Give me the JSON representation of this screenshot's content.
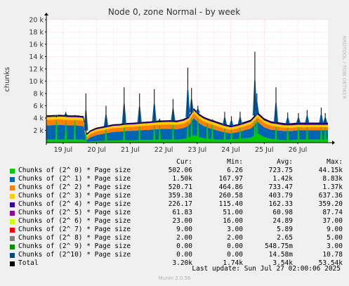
{
  "title": "Node 0, zone Normal - by week",
  "ylabel": "chunks",
  "watermark": "RRDTOOL / TOBI OETIKER",
  "footer": {
    "last_update": "Last update: Sun Jul 27 02:00:06 2025",
    "version": "Munin 2.0.56"
  },
  "legend_headers": {
    "cur": "Cur:",
    "min": "Min:",
    "avg": "Avg:",
    "max": "Max:"
  },
  "chart_data": {
    "type": "area",
    "stacked": true,
    "xlabel": "",
    "ylim": [
      0,
      20000
    ],
    "yticks": [
      {
        "value": 2000,
        "label": "2 k"
      },
      {
        "value": 4000,
        "label": "4 k"
      },
      {
        "value": 6000,
        "label": "6 k"
      },
      {
        "value": 8000,
        "label": "8 k"
      },
      {
        "value": 10000,
        "label": "10 k"
      },
      {
        "value": 12000,
        "label": "12 k"
      },
      {
        "value": 14000,
        "label": "14 k"
      },
      {
        "value": 16000,
        "label": "16 k"
      },
      {
        "value": 18000,
        "label": "18 k"
      },
      {
        "value": 20000,
        "label": "20 k"
      }
    ],
    "xrange_days": [
      0,
      8.4
    ],
    "xticks": [
      {
        "day": 0.5,
        "label": "19 Jul"
      },
      {
        "day": 1.5,
        "label": "20 Jul"
      },
      {
        "day": 2.5,
        "label": "21 Jul"
      },
      {
        "day": 3.5,
        "label": "22 Jul"
      },
      {
        "day": 4.5,
        "label": "23 Jul"
      },
      {
        "day": 5.5,
        "label": "24 Jul"
      },
      {
        "day": 6.5,
        "label": "25 Jul"
      },
      {
        "day": 7.5,
        "label": "26 Jul"
      }
    ],
    "grid": true,
    "series": [
      {
        "name": "Chunks of (2^ 0) * Page size",
        "color": "#00CC00",
        "cur": "502.06",
        "min": "6.26",
        "avg": "723.75",
        "max": "44.15k"
      },
      {
        "name": "Chunks of (2^ 1) * Page size",
        "color": "#0066B3",
        "cur": "1.50k",
        "min": "167.97",
        "avg": "1.42k",
        "max": "8.83k"
      },
      {
        "name": "Chunks of (2^ 2) * Page size",
        "color": "#FF8000",
        "cur": "520.71",
        "min": "464.86",
        "avg": "733.47",
        "max": "1.37k"
      },
      {
        "name": "Chunks of (2^ 3) * Page size",
        "color": "#FFCC00",
        "cur": "359.38",
        "min": "260.58",
        "avg": "403.79",
        "max": "637.36"
      },
      {
        "name": "Chunks of (2^ 4) * Page size",
        "color": "#330099",
        "cur": "226.17",
        "min": "115.40",
        "avg": "162.33",
        "max": "359.20"
      },
      {
        "name": "Chunks of (2^ 5) * Page size",
        "color": "#990099",
        "cur": "61.83",
        "min": "51.00",
        "avg": "60.98",
        "max": "87.74"
      },
      {
        "name": "Chunks of (2^ 6) * Page size",
        "color": "#CCFF00",
        "cur": "23.00",
        "min": "16.00",
        "avg": "24.89",
        "max": "37.00"
      },
      {
        "name": "Chunks of (2^ 7) * Page size",
        "color": "#FF0000",
        "cur": "9.00",
        "min": "3.00",
        "avg": "5.89",
        "max": "9.00"
      },
      {
        "name": "Chunks of (2^ 8) * Page size",
        "color": "#808080",
        "cur": "2.00",
        "min": "2.00",
        "avg": "2.65",
        "max": "5.00"
      },
      {
        "name": "Chunks of (2^ 9) * Page size",
        "color": "#008F00",
        "cur": "0.00",
        "min": "0.00",
        "avg": "548.75m",
        "max": "3.00"
      },
      {
        "name": "Chunks of (2^10) * Page size",
        "color": "#00487D",
        "cur": "0.00",
        "min": "0.00",
        "avg": "14.58m",
        "max": "10.78"
      },
      {
        "name": "Total",
        "color": "#000000",
        "cur": "3.20k",
        "min": "1.74k",
        "avg": "3.54k",
        "max": "53.54k"
      }
    ],
    "samples": {
      "days": [
        0.0,
        0.4,
        0.55,
        0.7,
        0.9,
        1.1,
        1.2,
        1.32,
        1.5,
        1.75,
        2.0,
        2.2,
        2.35,
        2.6,
        2.9,
        3.1,
        3.3,
        3.5,
        3.7,
        3.9,
        4.1,
        4.25,
        4.4,
        4.55,
        4.7,
        4.9,
        5.1,
        5.3,
        5.5,
        5.7,
        5.9,
        6.1,
        6.3,
        6.5,
        6.7,
        6.9,
        7.1,
        7.3,
        7.5,
        7.7,
        7.9,
        8.1,
        8.4
      ],
      "s0": [
        500,
        500,
        500,
        500,
        500,
        500,
        100,
        200,
        250,
        300,
        350,
        350,
        400,
        400,
        450,
        450,
        500,
        500,
        500,
        500,
        600,
        800,
        1200,
        900,
        700,
        600,
        500,
        500,
        500,
        600,
        700,
        800,
        1500,
        900,
        600,
        500,
        400,
        400,
        500,
        500,
        500,
        500,
        500
      ],
      "s1": [
        2300,
        2400,
        2350,
        2300,
        2300,
        2200,
        300,
        700,
        1000,
        1200,
        1400,
        1450,
        1500,
        1550,
        1600,
        1650,
        1700,
        1750,
        1750,
        1700,
        1800,
        2000,
        2800,
        2300,
        2000,
        1700,
        1500,
        1200,
        1000,
        1100,
        1300,
        1500,
        1900,
        1600,
        1500,
        1500,
        1500,
        1500,
        1500,
        1500,
        1500,
        1500,
        1500
      ],
      "s2": [
        900,
        900,
        900,
        900,
        900,
        900,
        500,
        550,
        600,
        600,
        620,
        620,
        650,
        650,
        680,
        700,
        700,
        700,
        720,
        720,
        750,
        750,
        800,
        780,
        760,
        740,
        700,
        650,
        600,
        620,
        650,
        700,
        750,
        700,
        650,
        600,
        550,
        540,
        530,
        525,
        520,
        520,
        520
      ],
      "s3": [
        450,
        450,
        450,
        450,
        450,
        450,
        300,
        320,
        340,
        350,
        360,
        360,
        370,
        370,
        380,
        380,
        390,
        390,
        400,
        400,
        420,
        420,
        450,
        440,
        430,
        420,
        410,
        390,
        380,
        390,
        400,
        420,
        440,
        420,
        410,
        400,
        380,
        370,
        365,
        360,
        360,
        360,
        360
      ],
      "rest": [
        220,
        220,
        220,
        220,
        220,
        220,
        200,
        200,
        200,
        200,
        200,
        200,
        200,
        210,
        210,
        210,
        220,
        220,
        220,
        220,
        230,
        240,
        260,
        250,
        240,
        240,
        230,
        230,
        230,
        240,
        250,
        260,
        280,
        270,
        260,
        270,
        280,
        290,
        300,
        310,
        320,
        320,
        320
      ]
    },
    "spikes": [
      {
        "day": 0.3,
        "value": 4100
      },
      {
        "day": 0.58,
        "value": 5000
      },
      {
        "day": 0.85,
        "value": 4500
      },
      {
        "day": 1.18,
        "value": 8000
      },
      {
        "day": 1.78,
        "value": 6000
      },
      {
        "day": 2.32,
        "value": 9000
      },
      {
        "day": 2.78,
        "value": 8000
      },
      {
        "day": 3.22,
        "value": 8700
      },
      {
        "day": 3.38,
        "value": 3900
      },
      {
        "day": 3.78,
        "value": 7100
      },
      {
        "day": 4.22,
        "value": 12200
      },
      {
        "day": 4.33,
        "value": 8900
      },
      {
        "day": 4.52,
        "value": 6000
      },
      {
        "day": 4.8,
        "value": 3900
      },
      {
        "day": 4.95,
        "value": 3800
      },
      {
        "day": 5.32,
        "value": 5000
      },
      {
        "day": 5.52,
        "value": 4300
      },
      {
        "day": 5.78,
        "value": 5000
      },
      {
        "day": 6.22,
        "value": 14800
      },
      {
        "day": 6.28,
        "value": 8000
      },
      {
        "day": 6.85,
        "value": 9000
      },
      {
        "day": 7.2,
        "value": 4900
      },
      {
        "day": 7.52,
        "value": 4800
      },
      {
        "day": 7.78,
        "value": 5300
      },
      {
        "day": 8.2,
        "value": 5700
      },
      {
        "day": 8.32,
        "value": 4800
      }
    ]
  }
}
